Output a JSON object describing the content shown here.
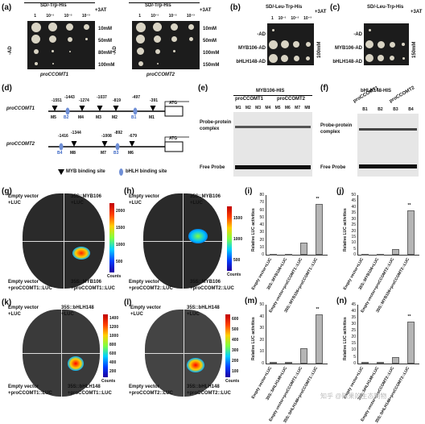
{
  "panels": {
    "a": {
      "letter": "(a)",
      "left_header": "SD/-Trp-His",
      "right_header": "SD/-Trp-His",
      "left_3at": "+3AT",
      "right_3at": "+3AT",
      "dilutions": [
        "1",
        "10⁻¹",
        "10⁻²",
        "10⁻³"
      ],
      "left_side": "-AD",
      "right_side": "-AD",
      "left_conc": [
        "10mM",
        "50mM",
        "80mM",
        "100mM"
      ],
      "right_conc": [
        "10mM",
        "50mM",
        "100mM",
        "150mM"
      ],
      "left_caption": "proCCOMT1",
      "right_caption": "proCCOMT2"
    },
    "b": {
      "letter": "(b)",
      "header": "SD/-Leu-Trp-His",
      "plus3at": "+3AT",
      "dilutions": [
        "1",
        "10⁻¹",
        "10⁻²",
        "10⁻³"
      ],
      "rows": [
        "-AD",
        "MYB106-AD",
        "bHLH148-AD"
      ],
      "conc": "100mM"
    },
    "c": {
      "letter": "(c)",
      "header": "SD/-Leu-Trp-His",
      "plus3at": "+3AT",
      "rows": [
        "-AD",
        "MYB106-AD",
        "bHLH148-AD"
      ],
      "conc": "150mM"
    },
    "d": {
      "letter": "(d)",
      "promoter1": "proCCOMT1",
      "promoter2": "proCCOMT2",
      "atg": "ATG",
      "p1_positions": [
        "-1551",
        "-1443",
        "-1274",
        "-1037",
        "-819",
        "-497",
        "-391"
      ],
      "p1_sites": [
        "M5",
        "B2",
        "M4",
        "M3",
        "M2",
        "B1",
        "M1"
      ],
      "p2_positions": [
        "-1416",
        "-1344",
        "-1008",
        "-892",
        "-679"
      ],
      "p2_sites": [
        "B4",
        "M8",
        "M7",
        "B3",
        "M6"
      ],
      "legend_myb": "MYB binding site",
      "legend_bhlh": "bHLH binding site"
    },
    "e": {
      "letter": "(e)",
      "title": "MYB106-HIS",
      "group1": "proCCOMT1",
      "group2": "proCCOMT2",
      "lanes": [
        "M1",
        "M2",
        "M3",
        "M4",
        "M5",
        "M6",
        "M7",
        "M8"
      ],
      "complex_label": "Probe-protein\ncomplex",
      "free_label": "Free Probe"
    },
    "f": {
      "letter": "(f)",
      "title": "bHLH148-HIS",
      "group1": "proCCOMT1",
      "group2": "proCCOMT2",
      "lanes": [
        "B1",
        "B2",
        "B3",
        "B4"
      ],
      "complex_label": "Probe-protein\ncomplex",
      "free_label": "Free Probe"
    },
    "g": {
      "letter": "(g)",
      "tl": "Empty vector\n+LUC",
      "tr": "35S::MYB106\n+LUC",
      "bl": "Empty vector\n+proCCOMT1::LUC",
      "br": "35S::MYB106\n+proCCOMT1::LUC",
      "scale": [
        "2000",
        "1500",
        "1000",
        "500"
      ],
      "unit": "Counts"
    },
    "h": {
      "letter": "(h)",
      "tl": "Empty vector\n+LUC",
      "tr": "35S::MYB106\n+LUC",
      "bl": "Empty vector\n+proCCOMT2::LUC",
      "br": "35S::MYB106\n+proCCOMT2::LUC",
      "scale": [
        "1500",
        "1000",
        "500"
      ],
      "unit": "Counts"
    },
    "k": {
      "letter": "(k)",
      "tl": "Empty vector\n+LUC",
      "tr": "35S::bHLH148\n+LUC",
      "bl": "Empty vector\n+proCCOMT1::LUC",
      "br": "35S::bHLH148\n+proCCOMT1::LUC",
      "scale": [
        "1400",
        "1200",
        "1000",
        "800",
        "600",
        "400",
        "200"
      ],
      "unit": "Counts"
    },
    "l": {
      "letter": "(l)",
      "tl": "Empty vector\n+LUC",
      "tr": "35S::bHLH148\n+LUC",
      "bl": "Empty vector\n+proCCOMT2::LUC",
      "br": "35S::bHLH148\n+proCCOMT2::LUC",
      "scale": [
        "600",
        "500",
        "400",
        "300",
        "200",
        "100"
      ],
      "unit": "Counts"
    }
  },
  "chart_data": [
    {
      "panel": "(i)",
      "type": "bar",
      "ylabel": "Relative LUC activities",
      "ylim": [
        0,
        80
      ],
      "yticks": [
        0,
        10,
        20,
        30,
        40,
        50,
        60,
        70,
        80
      ],
      "categories": [
        "Empty vector+LUC",
        "35S::MYB106+LUC",
        "Empty vector+proCCOMT1::LUC",
        "35S::MYB106+proCCOMT1::LUC"
      ],
      "values": [
        1,
        1,
        16,
        68
      ],
      "annotation": "**"
    },
    {
      "panel": "(j)",
      "type": "bar",
      "ylabel": "Relative LUC activities",
      "ylim": [
        0,
        50
      ],
      "yticks": [
        0,
        5,
        10,
        15,
        20,
        25,
        30,
        35,
        40,
        45,
        50
      ],
      "categories": [
        "Empty vector+LUC",
        "35S::MYB106+LUC",
        "Empty vector+proCCOMT2::LUC",
        "35S::MYB106+proCCOMT2::LUC"
      ],
      "values": [
        1,
        1,
        5,
        37
      ],
      "annotation": "**"
    },
    {
      "panel": "(m)",
      "type": "bar",
      "ylabel": "Relative LUC activities",
      "ylim": [
        0,
        50
      ],
      "yticks": [
        0,
        10,
        20,
        30,
        40,
        50
      ],
      "categories": [
        "Empty vector+LUC",
        "35S::bHLH148+LUC",
        "Empty vector+proCCOMT1::LUC",
        "35S::bHLH148+proCCOMT1::LUC"
      ],
      "values": [
        1,
        1,
        13,
        42
      ],
      "annotation": "**"
    },
    {
      "panel": "(n)",
      "type": "bar",
      "ylabel": "Relative LUC activities",
      "ylim": [
        0,
        45
      ],
      "yticks": [
        0,
        5,
        10,
        15,
        20,
        25,
        30,
        35,
        40,
        45
      ],
      "categories": [
        "Empty vector+LUC",
        "35S::bHLH148+LUC",
        "Empty vector+proCCOMT2::LUC",
        "35S::bHLH148+proCCOMT2::LUC"
      ],
      "values": [
        1,
        1,
        5,
        32
      ],
      "annotation": "**"
    }
  ],
  "watermark": "知乎 @陈果的生态制物"
}
